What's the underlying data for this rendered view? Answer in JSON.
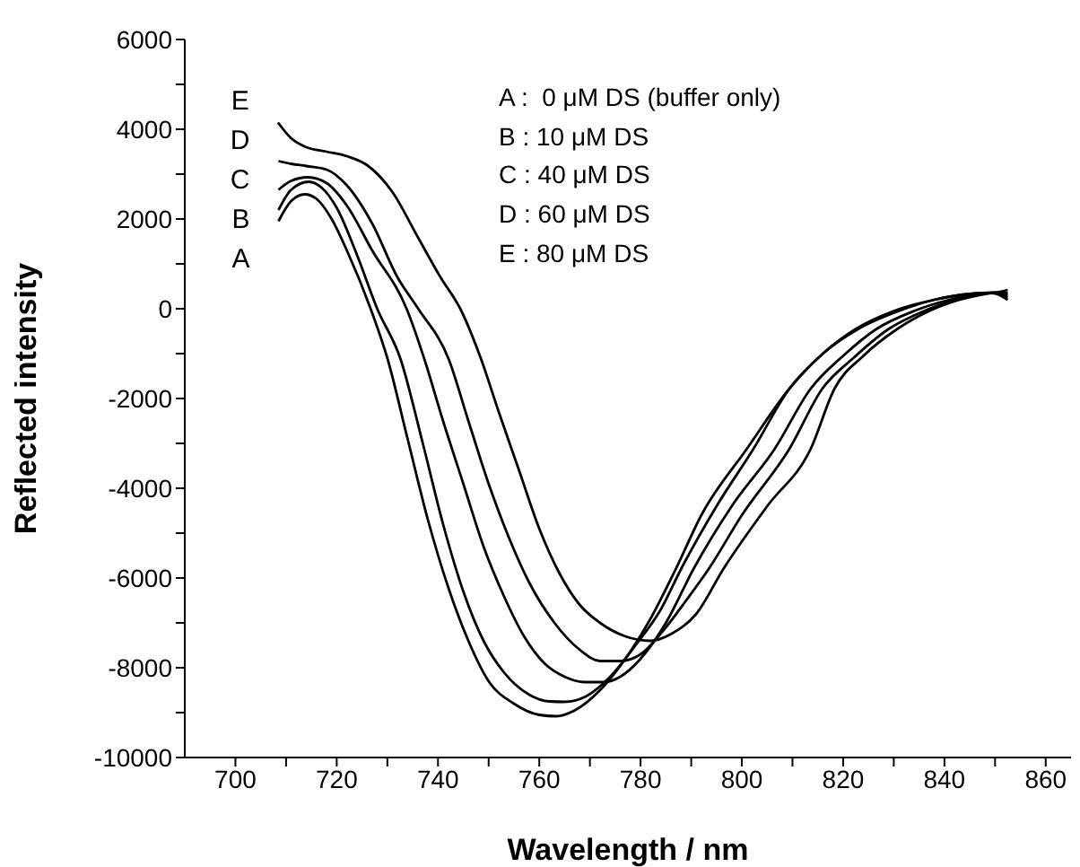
{
  "chart_data": {
    "type": "line",
    "xlabel": "Wavelength / nm",
    "ylabel": "Reflected intensity",
    "xlim": [
      690,
      865
    ],
    "ylim": [
      -10000,
      6000
    ],
    "xticks": [
      700,
      {
        "value": 710,
        "label": null
      },
      720,
      {
        "value": 730,
        "label": null
      },
      740,
      {
        "value": 750,
        "label": null
      },
      760,
      {
        "value": 770,
        "label": null
      },
      780,
      {
        "value": 790,
        "label": null
      },
      800,
      {
        "value": 810,
        "label": null
      },
      820,
      {
        "value": 830,
        "label": null
      },
      840,
      {
        "value": 850,
        "label": null
      },
      860
    ],
    "yticks": [
      -10000,
      {
        "value": -9000,
        "label": null
      },
      -8000,
      {
        "value": -7000,
        "label": null
      },
      -6000,
      {
        "value": -5000,
        "label": null
      },
      -4000,
      {
        "value": -3000,
        "label": null
      },
      -2000,
      {
        "value": -1000,
        "label": null
      },
      0,
      {
        "value": 1000,
        "label": null
      },
      2000,
      {
        "value": 3000,
        "label": null
      },
      4000,
      {
        "value": 5000,
        "label": null
      },
      6000
    ],
    "annotations": [
      "A :  0 μM DS (buffer only)",
      "B : 10 μM DS",
      "C : 40 μM DS",
      "D : 60 μM DS",
      "E : 80 μM DS"
    ],
    "series": [
      {
        "name": "A",
        "color": "#000000",
        "x": [
          708.5,
          711,
          713.7,
          716,
          719,
          722,
          726.7,
          730,
          734,
          738,
          742,
          746,
          750,
          755,
          760,
          763.3,
          767,
          772,
          777,
          782,
          787,
          792,
          801,
          809.4,
          816,
          822.5,
          830,
          838,
          845,
          849.5,
          852.5
        ],
        "values": [
          1950,
          2400,
          2550,
          2450,
          2000,
          1300,
          0,
          -1100,
          -2900,
          -4700,
          -6200,
          -7400,
          -8300,
          -8800,
          -9050,
          -9080,
          -8950,
          -8500,
          -7800,
          -6900,
          -5790,
          -4600,
          -3120,
          -1780,
          -1000,
          -450,
          -50,
          200,
          330,
          350,
          200
        ]
      },
      {
        "name": "B",
        "color": "#000000",
        "x": [
          708.5,
          711,
          714.5,
          717,
          720,
          724,
          728,
          732.6,
          737,
          741,
          745,
          749,
          753,
          758,
          762,
          765,
          769,
          774,
          779,
          784,
          788,
          795,
          802.3,
          809.4,
          816,
          823,
          831,
          838,
          845,
          849.5,
          852.5
        ],
        "values": [
          2200,
          2650,
          2830,
          2700,
          2250,
          1200,
          0,
          -1120,
          -3000,
          -4800,
          -6300,
          -7400,
          -8100,
          -8600,
          -8750,
          -8760,
          -8650,
          -8200,
          -7500,
          -6700,
          -5800,
          -4400,
          -3120,
          -1780,
          -1000,
          -450,
          -50,
          200,
          330,
          360,
          250
        ]
      },
      {
        "name": "C",
        "color": "#000000",
        "x": [
          708.5,
          711,
          714.3,
          718,
          722,
          727,
          733.8,
          737.3,
          741,
          745,
          749,
          753,
          757,
          761,
          765,
          769,
          772.8,
          776,
          780,
          785,
          790.5,
          798,
          806.5,
          813.6,
          820,
          826.6,
          834,
          841,
          847,
          850,
          852.5
        ],
        "values": [
          2650,
          2850,
          2930,
          2800,
          2300,
          1300,
          0,
          -1120,
          -2500,
          -3900,
          -5300,
          -6400,
          -7300,
          -7900,
          -8200,
          -8320,
          -8320,
          -8200,
          -7800,
          -7000,
          -5790,
          -4400,
          -3120,
          -1780,
          -1050,
          -450,
          -50,
          200,
          330,
          350,
          300
        ]
      },
      {
        "name": "D",
        "color": "#000000",
        "x": [
          708.5,
          711,
          714,
          718,
          722,
          727,
          732,
          736.1,
          742.1,
          746,
          750,
          754,
          758,
          763,
          768,
          772,
          776,
          780,
          785,
          789,
          793.5,
          800,
          809.4,
          815.9,
          822,
          829,
          836,
          842,
          847,
          850,
          852.5
        ],
        "values": [
          3290,
          3230,
          3180,
          3100,
          2750,
          1900,
          700,
          0,
          -1120,
          -2500,
          -3900,
          -5100,
          -6100,
          -7000,
          -7600,
          -7850,
          -7850,
          -7700,
          -7100,
          -6500,
          -5790,
          -4600,
          -3120,
          -1780,
          -1100,
          -450,
          -50,
          200,
          330,
          360,
          350
        ]
      },
      {
        "name": "E",
        "color": "#000000",
        "x": [
          708.4,
          711,
          714,
          718,
          722,
          726,
          731,
          736,
          740.5,
          744.4,
          748.5,
          752,
          756,
          760,
          764,
          768,
          772,
          777,
          782,
          786,
          791,
          796.4,
          805,
          813.6,
          818.3,
          824,
          830.7,
          837,
          843,
          848,
          851,
          852.5
        ],
        "values": [
          4150,
          3800,
          3600,
          3500,
          3400,
          3200,
          2600,
          1600,
          700,
          0,
          -1120,
          -2300,
          -3600,
          -4900,
          -5900,
          -6600,
          -7000,
          -7300,
          -7400,
          -7250,
          -6800,
          -5790,
          -4400,
          -3120,
          -1780,
          -1050,
          -450,
          -50,
          200,
          330,
          380,
          420
        ]
      }
    ]
  }
}
